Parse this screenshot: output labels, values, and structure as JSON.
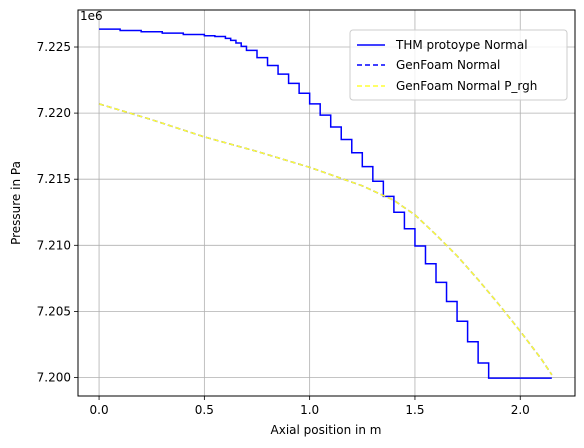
{
  "chart_data": {
    "type": "line",
    "xlabel": "Axial position in m",
    "ylabel": "Pressure in Pa",
    "y_offset_label": "1e6",
    "xlim": [
      -0.1,
      2.26
    ],
    "ylim": [
      7.1986,
      7.2278
    ],
    "x_ticks": [
      0.0,
      0.5,
      1.0,
      1.5,
      2.0
    ],
    "x_tick_labels": [
      "0.0",
      "0.5",
      "1.0",
      "1.5",
      "2.0"
    ],
    "y_ticks": [
      7.2,
      7.205,
      7.21,
      7.215,
      7.22,
      7.225
    ],
    "y_tick_labels": [
      "7.200",
      "7.205",
      "7.210",
      "7.215",
      "7.220",
      "7.225"
    ],
    "grid": true,
    "legend_position": "top-right",
    "series": [
      {
        "name": "THM protoype Normal",
        "color": "#0000ff",
        "style": "step-solid",
        "x": [
          0.0,
          0.1,
          0.2,
          0.3,
          0.4,
          0.5,
          0.55,
          0.6,
          0.625,
          0.65,
          0.675,
          0.7,
          0.75,
          0.8,
          0.85,
          0.9,
          0.95,
          1.0,
          1.05,
          1.1,
          1.15,
          1.2,
          1.25,
          1.3,
          1.35,
          1.4,
          1.45,
          1.5,
          1.55,
          1.6,
          1.65,
          1.7,
          1.75,
          1.8,
          1.85,
          1.9,
          1.95,
          2.0,
          2.05,
          2.1,
          2.15
        ],
        "y": [
          7.22635,
          7.22625,
          7.22615,
          7.22605,
          7.22595,
          7.22585,
          7.2258,
          7.22565,
          7.2255,
          7.2253,
          7.22505,
          7.22475,
          7.2242,
          7.2236,
          7.22295,
          7.22225,
          7.2215,
          7.2207,
          7.21985,
          7.21895,
          7.218,
          7.217,
          7.21595,
          7.21485,
          7.2137,
          7.2125,
          7.21125,
          7.20995,
          7.2086,
          7.2072,
          7.20575,
          7.20425,
          7.2027,
          7.2011,
          7.19995,
          7.19995,
          7.19995,
          7.19995,
          7.19995,
          7.19995,
          7.19995
        ]
      },
      {
        "name": "GenFoam Normal",
        "color": "#0000ff",
        "style": "dashed",
        "x": [
          0.0,
          0.25,
          0.5,
          0.75,
          1.0,
          1.25,
          1.4,
          1.5,
          1.6,
          1.7,
          1.8,
          1.9,
          2.0,
          2.1,
          2.15
        ],
        "y": [
          7.2207,
          7.2195,
          7.2182,
          7.2171,
          7.2159,
          7.2145,
          7.2134,
          7.2123,
          7.2108,
          7.2092,
          7.2074,
          7.2055,
          7.2035,
          7.2014,
          7.2002
        ]
      },
      {
        "name": "GenFoam Normal P_rgh",
        "color": "#ffff33",
        "style": "dashed",
        "x": [
          0.0,
          0.25,
          0.5,
          0.75,
          1.0,
          1.25,
          1.4,
          1.5,
          1.6,
          1.7,
          1.8,
          1.9,
          2.0,
          2.1,
          2.15
        ],
        "y": [
          7.2207,
          7.2195,
          7.2182,
          7.2171,
          7.2159,
          7.2145,
          7.2134,
          7.2123,
          7.2108,
          7.2092,
          7.2074,
          7.2055,
          7.2035,
          7.2014,
          7.2002
        ]
      }
    ]
  }
}
